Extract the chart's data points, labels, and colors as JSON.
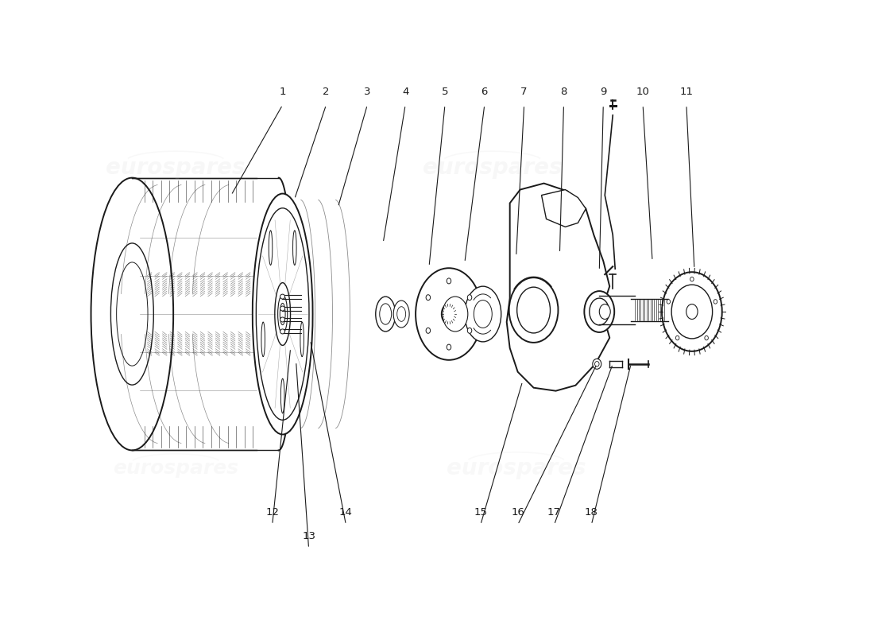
{
  "background_color": "#ffffff",
  "line_color": "#1a1a1a",
  "watermark_color": "#cccccc",
  "figsize": [
    11.0,
    8.0
  ],
  "dpi": 100,
  "xlim": [
    0,
    11
  ],
  "ylim": [
    0,
    8
  ],
  "label_data": {
    "1": {
      "lp": [
        3.55,
        6.85
      ],
      "ae": [
        2.9,
        5.55
      ]
    },
    "2": {
      "lp": [
        4.1,
        6.85
      ],
      "ae": [
        3.7,
        5.5
      ]
    },
    "3": {
      "lp": [
        4.62,
        6.85
      ],
      "ae": [
        4.25,
        5.4
      ]
    },
    "4": {
      "lp": [
        5.1,
        6.85
      ],
      "ae": [
        4.82,
        4.95
      ]
    },
    "5": {
      "lp": [
        5.6,
        6.85
      ],
      "ae": [
        5.4,
        4.65
      ]
    },
    "6": {
      "lp": [
        6.1,
        6.85
      ],
      "ae": [
        5.85,
        4.7
      ]
    },
    "7": {
      "lp": [
        6.6,
        6.85
      ],
      "ae": [
        6.5,
        4.78
      ]
    },
    "8": {
      "lp": [
        7.1,
        6.85
      ],
      "ae": [
        7.05,
        4.82
      ]
    },
    "9": {
      "lp": [
        7.6,
        6.85
      ],
      "ae": [
        7.55,
        4.6
      ]
    },
    "10": {
      "lp": [
        8.1,
        6.85
      ],
      "ae": [
        8.22,
        4.72
      ]
    },
    "11": {
      "lp": [
        8.65,
        6.85
      ],
      "ae": [
        8.75,
        4.62
      ]
    },
    "12": {
      "lp": [
        3.42,
        1.55
      ],
      "ae": [
        3.65,
        3.62
      ]
    },
    "13": {
      "lp": [
        3.88,
        1.25
      ],
      "ae": [
        3.72,
        3.45
      ]
    },
    "14": {
      "lp": [
        4.35,
        1.55
      ],
      "ae": [
        3.9,
        3.72
      ]
    },
    "15": {
      "lp": [
        6.05,
        1.55
      ],
      "ae": [
        6.58,
        3.2
      ]
    },
    "16": {
      "lp": [
        6.52,
        1.55
      ],
      "ae": [
        7.52,
        3.42
      ]
    },
    "17": {
      "lp": [
        6.98,
        1.55
      ],
      "ae": [
        7.72,
        3.42
      ]
    },
    "18": {
      "lp": [
        7.45,
        1.55
      ],
      "ae": [
        7.95,
        3.42
      ]
    }
  }
}
